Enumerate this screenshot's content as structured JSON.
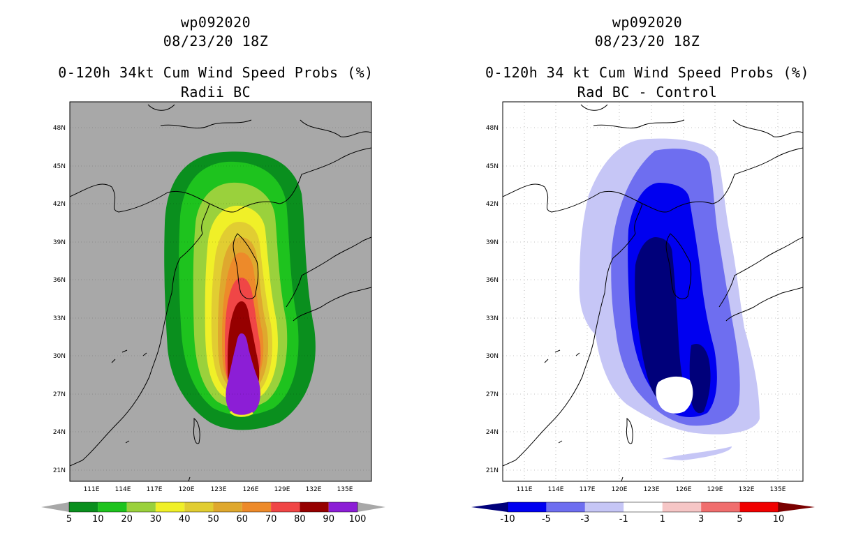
{
  "panels": [
    {
      "id": "left",
      "storm_id": "wp092020",
      "date": "08/23/20 18Z",
      "title": "0-120h 34kt Cum Wind Speed Probs (%)",
      "subtitle": "Radii BC",
      "background": "#a8a8a8",
      "colorbar": {
        "labels": [
          "5",
          "10",
          "20",
          "30",
          "40",
          "50",
          "60",
          "70",
          "80",
          "90",
          "100"
        ],
        "colors": [
          "#0a8f1e",
          "#1ec31e",
          "#9ad13c",
          "#f0f028",
          "#e1cd32",
          "#dfa82e",
          "#ed8a2a",
          "#f04646",
          "#960000",
          "#8c1ed6"
        ],
        "end_colors": [
          "#a8a8a8",
          "#a8a8a8"
        ]
      }
    },
    {
      "id": "right",
      "storm_id": "wp092020",
      "date": "08/23/20 18Z",
      "title": "0-120h 34 kt Cum Wind Speed Probs (%)",
      "subtitle": "Rad BC - Control",
      "background": "#ffffff",
      "colorbar": {
        "labels": [
          "-10",
          "-5",
          "-3",
          "-1",
          "1",
          "3",
          "5",
          "10"
        ],
        "colors": [
          "#0000f0",
          "#6e6ef0",
          "#c6c6f6",
          "#ffffff",
          "#f6c6c6",
          "#f06e6e",
          "#f00000"
        ],
        "end_colors": [
          "#00007a",
          "#7a0000"
        ]
      }
    }
  ],
  "axes": {
    "lat_labels": [
      "48N",
      "45N",
      "42N",
      "39N",
      "36N",
      "33N",
      "30N",
      "27N",
      "24N",
      "21N"
    ],
    "lon_labels": [
      "111E",
      "114E",
      "117E",
      "120E",
      "123E",
      "126E",
      "129E",
      "132E",
      "135E"
    ]
  }
}
